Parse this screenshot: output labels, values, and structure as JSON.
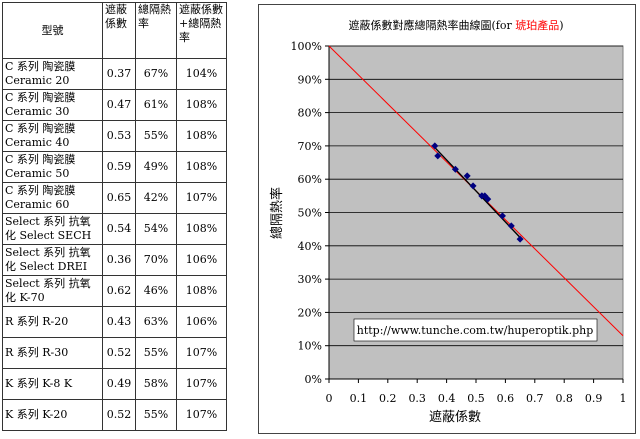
{
  "table": {
    "headers": [
      "型號",
      "遮蔽係數",
      "總隔熱率",
      "遮蔽係數+總隔熱率"
    ],
    "rows": [
      [
        "C 系列 陶瓷膜 Ceramic 20",
        "0.37",
        "67%",
        "104%"
      ],
      [
        "C 系列 陶瓷膜 Ceramic 30",
        "0.47",
        "61%",
        "108%"
      ],
      [
        "C 系列 陶瓷膜 Ceramic 40",
        "0.53",
        "55%",
        "108%"
      ],
      [
        "C 系列 陶瓷膜 Ceramic 50",
        "0.59",
        "49%",
        "108%"
      ],
      [
        "C 系列 陶瓷膜 Ceramic 60",
        "0.65",
        "42%",
        "107%"
      ],
      [
        "Select 系列 抗氧化 Select SECH",
        "0.54",
        "54%",
        "108%"
      ],
      [
        "Select 系列 抗氧化 Select DREI",
        "0.36",
        "70%",
        "106%"
      ],
      [
        "Select 系列 抗氧化 K-70",
        "0.62",
        "46%",
        "108%"
      ],
      [
        "R 系列 R-20",
        "0.43",
        "63%",
        "106%"
      ],
      [
        "R 系列 R-30",
        "0.52",
        "55%",
        "107%"
      ],
      [
        "K 系列 K-8 K",
        "0.49",
        "58%",
        "107%"
      ],
      [
        "K 系列 K-20",
        "0.52",
        "55%",
        "107%"
      ]
    ]
  },
  "chart_data": {
    "type": "scatter",
    "title": "遮蔽係數對應總隔熱率曲線圖(for ",
    "title_highlight": "琥珀產品",
    "title_end": ")",
    "xlabel": "遮蔽係數",
    "ylabel": "總隔熱率",
    "xlim": [
      0,
      1
    ],
    "ylim": [
      0,
      100
    ],
    "x_ticks": [
      "0",
      "0.1",
      "0.2",
      "0.3",
      "0.4",
      "0.5",
      "0.6",
      "0.7",
      "0.8",
      "0.9",
      "1"
    ],
    "y_ticks": [
      "0%",
      "10%",
      "20%",
      "30%",
      "40%",
      "50%",
      "60%",
      "70%",
      "80%",
      "90%",
      "100%"
    ],
    "grid": true,
    "annotation": "http://www.tunche.com.tw/huperoptik.php",
    "points": [
      {
        "x": 0.37,
        "y": 67
      },
      {
        "x": 0.47,
        "y": 61
      },
      {
        "x": 0.53,
        "y": 55
      },
      {
        "x": 0.59,
        "y": 49
      },
      {
        "x": 0.65,
        "y": 42
      },
      {
        "x": 0.54,
        "y": 54
      },
      {
        "x": 0.36,
        "y": 70
      },
      {
        "x": 0.62,
        "y": 46
      },
      {
        "x": 0.43,
        "y": 63
      },
      {
        "x": 0.52,
        "y": 55
      },
      {
        "x": 0.49,
        "y": 58
      },
      {
        "x": 0.52,
        "y": 55
      }
    ],
    "reference_line": {
      "x": [
        0,
        1
      ],
      "y": [
        100,
        13
      ]
    },
    "fit_line": {
      "x": [
        0.36,
        0.65
      ],
      "y": [
        69.5,
        42.5
      ]
    },
    "colors": {
      "plot_bg": "#c0c0c0",
      "marker": "#000080",
      "reference_line": "#ff0000",
      "fit_line": "#000000",
      "title_highlight": "#ff0000"
    }
  }
}
